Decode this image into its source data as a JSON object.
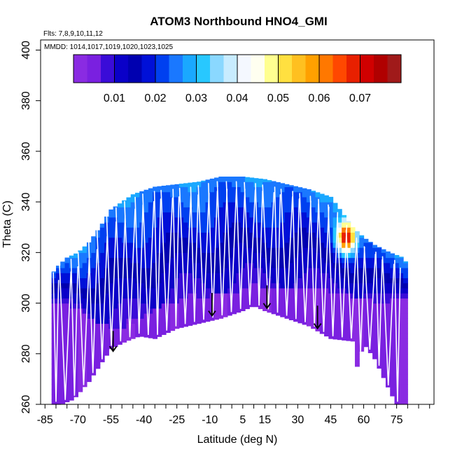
{
  "chart_data": {
    "type": "heatmap",
    "title": "ATOM3 Northbound HNO4_GMI",
    "subtitle_flights": "Flts: 7,8,9,10,11,12",
    "subtitle_dates": "MMDD: 1014,1017,1019,1020,1023,1025",
    "xlabel": "Latitude (deg N)",
    "ylabel": "Theta (C)",
    "xlim": [
      -87,
      92
    ],
    "ylim": [
      260,
      404
    ],
    "x_ticks": [
      -85,
      -70,
      -55,
      -40,
      -25,
      -10,
      5,
      15,
      30,
      45,
      60,
      75
    ],
    "x_minor_step": 5,
    "y_ticks": [
      260,
      280,
      300,
      320,
      340,
      360,
      380,
      400
    ],
    "colorbar": {
      "min": 0.0,
      "max": 0.08,
      "ticks": [
        0.01,
        0.02,
        0.03,
        0.04,
        0.05,
        0.06,
        0.07
      ],
      "tick_labels": [
        "0.01",
        "0.02",
        "0.03",
        "0.04",
        "0.05",
        "0.06",
        "0.07"
      ],
      "colors": [
        "#8a2be2",
        "#7a20e0",
        "#3a0cd8",
        "#0a00c8",
        "#0000b0",
        "#0010d8",
        "#0040f0",
        "#1a78ff",
        "#1aa8ff",
        "#28c8ff",
        "#8ad8ff",
        "#c8ecff",
        "#f4f8ff",
        "#fffff0",
        "#ffff90",
        "#ffe040",
        "#ffc020",
        "#ffa000",
        "#ff7800",
        "#ff4800",
        "#e82000",
        "#d00000",
        "#b00000",
        "#a01a1a"
      ]
    },
    "ceiling_theta": [
      [
        -82,
        311
      ],
      [
        -80,
        314
      ],
      [
        -75,
        318
      ],
      [
        -70,
        320
      ],
      [
        -65,
        324
      ],
      [
        -60,
        330
      ],
      [
        -55,
        337
      ],
      [
        -50,
        340
      ],
      [
        -45,
        343
      ],
      [
        -35,
        346
      ],
      [
        -25,
        347
      ],
      [
        -15,
        348
      ],
      [
        -5,
        350
      ],
      [
        5,
        350
      ],
      [
        15,
        349
      ],
      [
        25,
        347
      ],
      [
        35,
        345
      ],
      [
        45,
        342
      ],
      [
        50,
        336
      ],
      [
        55,
        330
      ],
      [
        60,
        326
      ],
      [
        65,
        323
      ],
      [
        72,
        320
      ],
      [
        78,
        318
      ],
      [
        80,
        315
      ]
    ],
    "floor_theta": [
      [
        -82,
        260
      ],
      [
        -78,
        260
      ],
      [
        -72,
        262
      ],
      [
        -65,
        269
      ],
      [
        -55,
        282
      ],
      [
        -48,
        285
      ],
      [
        -42,
        287
      ],
      [
        -35,
        286
      ],
      [
        -25,
        290
      ],
      [
        -15,
        292
      ],
      [
        -5,
        294
      ],
      [
        5,
        297
      ],
      [
        10,
        299
      ],
      [
        15,
        297
      ],
      [
        25,
        294
      ],
      [
        35,
        291
      ],
      [
        45,
        286
      ],
      [
        55,
        285
      ],
      [
        57,
        275
      ],
      [
        60,
        284
      ],
      [
        65,
        278
      ],
      [
        72,
        265
      ],
      [
        75,
        260
      ],
      [
        80,
        260
      ]
    ],
    "lowband_top": [
      [
        -82,
        300
      ],
      [
        -70,
        298
      ],
      [
        -60,
        292
      ],
      [
        -50,
        290
      ],
      [
        -30,
        300
      ],
      [
        -10,
        303
      ],
      [
        10,
        306
      ],
      [
        30,
        306
      ],
      [
        45,
        305
      ],
      [
        60,
        302
      ],
      [
        70,
        300
      ],
      [
        80,
        302
      ]
    ],
    "hotspot": {
      "lat": 52,
      "theta": 326,
      "value": 0.07
    },
    "arrows": [
      {
        "lat": -54,
        "theta_from": 285,
        "theta_to": 281
      },
      {
        "lat": -9,
        "theta_from": 300,
        "theta_to": 295
      },
      {
        "lat": 16,
        "theta_from": 303,
        "theta_to": 298
      },
      {
        "lat": 39,
        "theta_from": 295,
        "theta_to": 290
      }
    ],
    "flight_profiles_description": "white vertical sample profiles across latitudes"
  }
}
